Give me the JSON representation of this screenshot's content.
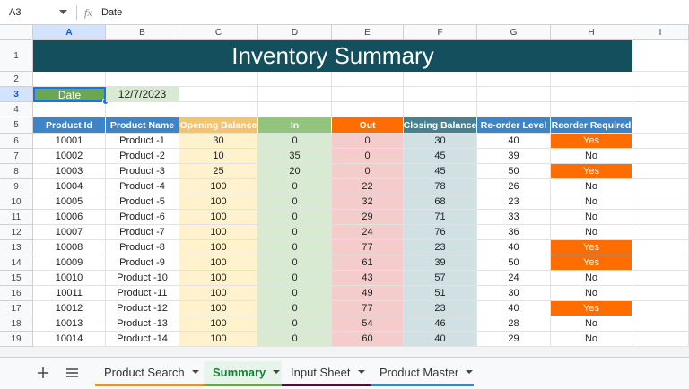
{
  "formula_bar": {
    "cell_ref": "A3",
    "fx_label": "fx",
    "content": "Date"
  },
  "column_letters": [
    "A",
    "B",
    "C",
    "D",
    "E",
    "F",
    "G",
    "H",
    "I"
  ],
  "row_numbers": [
    1,
    2,
    3,
    4,
    5,
    6,
    7,
    8,
    9,
    10,
    11,
    12,
    13,
    14,
    15,
    16,
    17,
    18,
    19
  ],
  "title": "Inventory Summary",
  "date_label": "Date",
  "date_value": "12/7/2023",
  "table": {
    "headers": [
      "Product Id",
      "Product Name",
      "Opening Balance",
      "In",
      "Out",
      "Closing Balance",
      "Re-order Level",
      "Reorder Required"
    ],
    "rows": [
      [
        10001,
        "Product -1",
        30,
        0,
        0,
        30,
        40,
        "Yes"
      ],
      [
        10002,
        "Product -2",
        10,
        35,
        0,
        45,
        39,
        "No"
      ],
      [
        10003,
        "Product -3",
        25,
        20,
        0,
        45,
        50,
        "Yes"
      ],
      [
        10004,
        "Product -4",
        100,
        0,
        22,
        78,
        26,
        "No"
      ],
      [
        10005,
        "Product -5",
        100,
        0,
        32,
        68,
        23,
        "No"
      ],
      [
        10006,
        "Product -6",
        100,
        0,
        29,
        71,
        33,
        "No"
      ],
      [
        10007,
        "Product -7",
        100,
        0,
        24,
        76,
        36,
        "No"
      ],
      [
        10008,
        "Product -8",
        100,
        0,
        77,
        23,
        40,
        "Yes"
      ],
      [
        10009,
        "Product -9",
        100,
        0,
        61,
        39,
        50,
        "Yes"
      ],
      [
        10010,
        "Product -10",
        100,
        0,
        43,
        57,
        24,
        "No"
      ],
      [
        10011,
        "Product -11",
        100,
        0,
        49,
        51,
        30,
        "No"
      ],
      [
        10012,
        "Product -12",
        100,
        0,
        77,
        23,
        40,
        "Yes"
      ],
      [
        10013,
        "Product -13",
        100,
        0,
        54,
        46,
        28,
        "No"
      ],
      [
        10014,
        "Product -14",
        100,
        0,
        60,
        40,
        29,
        "No"
      ]
    ]
  },
  "sheet_tabs": [
    "Product Search",
    "Summary",
    "Input Sheet",
    "Product Master"
  ]
}
